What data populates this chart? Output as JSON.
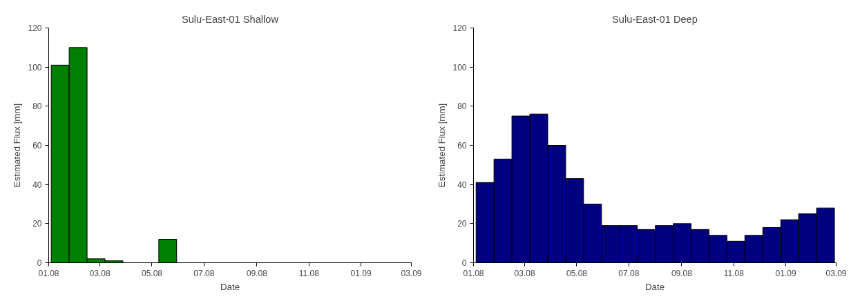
{
  "chart_data": [
    {
      "type": "histogram",
      "title": "Sulu-East-01 Shallow",
      "xlabel": "Date",
      "ylabel": "Estimated Flux [mm]",
      "bins": [
        "2008-01-04",
        "2008-01-25",
        "2008-02-15",
        "2008-03-07",
        "2008-03-28",
        "2008-04-18",
        "2008-05-09",
        "2008-05-30",
        "2008-06-20",
        "2008-07-11",
        "2008-08-01",
        "2008-08-22",
        "2008-09-12",
        "2008-10-03",
        "2008-10-24",
        "2008-11-14",
        "2008-12-05",
        "2008-12-26",
        "2009-01-16",
        "2009-02-06",
        "2009-02-27"
      ],
      "values": [
        101,
        110,
        2,
        1,
        null,
        null,
        12,
        null,
        null,
        null,
        null,
        null,
        null,
        null,
        null,
        null,
        null,
        null,
        null,
        null
      ],
      "color": "#008000",
      "xlim": [
        "2008-01-01",
        "2009-03-01"
      ],
      "xticks": [
        {
          "value": "2008-01-01",
          "label": "01.08"
        },
        {
          "value": "2008-03-01",
          "label": "03.08"
        },
        {
          "value": "2008-05-01",
          "label": "05.08"
        },
        {
          "value": "2008-07-01",
          "label": "07.08"
        },
        {
          "value": "2008-09-01",
          "label": "09.08"
        },
        {
          "value": "2008-11-01",
          "label": "11.08"
        },
        {
          "value": "2009-01-01",
          "label": "01.09"
        },
        {
          "value": "2009-03-01",
          "label": "03.09"
        }
      ],
      "ylim": [
        0,
        120
      ],
      "yticks": [
        0,
        20,
        40,
        60,
        80,
        100,
        120
      ],
      "grid": false
    },
    {
      "type": "histogram",
      "title": "Sulu-East-01 Deep",
      "xlabel": "Date",
      "ylabel": "Estimated Flux [mm]",
      "bins": [
        "2008-01-04",
        "2008-01-25",
        "2008-02-15",
        "2008-03-07",
        "2008-03-28",
        "2008-04-18",
        "2008-05-09",
        "2008-05-30",
        "2008-06-20",
        "2008-07-11",
        "2008-08-01",
        "2008-08-22",
        "2008-09-12",
        "2008-10-03",
        "2008-10-24",
        "2008-11-14",
        "2008-12-05",
        "2008-12-26",
        "2009-01-16",
        "2009-02-06",
        "2009-02-27"
      ],
      "values": [
        41,
        53,
        75,
        76,
        60,
        43,
        30,
        19,
        19,
        17,
        19,
        20,
        17,
        14,
        11,
        14,
        18,
        22,
        25,
        28
      ],
      "color": "#000080",
      "xlim": [
        "2008-01-01",
        "2009-03-01"
      ],
      "xticks": [
        {
          "value": "2008-01-01",
          "label": "01.08"
        },
        {
          "value": "2008-03-01",
          "label": "03.08"
        },
        {
          "value": "2008-05-01",
          "label": "05.08"
        },
        {
          "value": "2008-07-01",
          "label": "07.08"
        },
        {
          "value": "2008-09-01",
          "label": "09.08"
        },
        {
          "value": "2008-11-01",
          "label": "11.08"
        },
        {
          "value": "2009-01-01",
          "label": "01.09"
        },
        {
          "value": "2009-03-01",
          "label": "03.09"
        }
      ],
      "ylim": [
        0,
        120
      ],
      "yticks": [
        0,
        20,
        40,
        60,
        80,
        100,
        120
      ],
      "grid": false
    }
  ]
}
